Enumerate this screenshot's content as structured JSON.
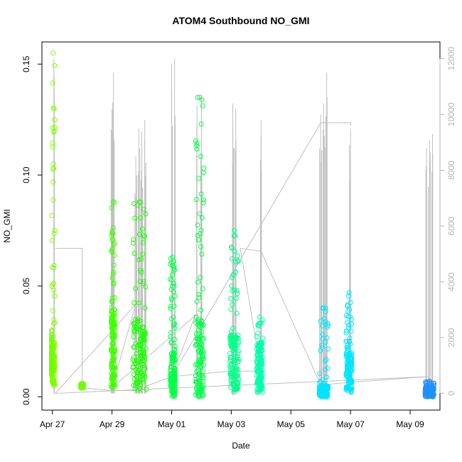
{
  "chart_data": {
    "type": "scatter",
    "title": "ATOM4 Southbound NO_GMI",
    "xlabel": "Date",
    "ylabel": "NO_GMI",
    "x_ticks": [
      "Apr 27",
      "Apr 29",
      "May 01",
      "May 03",
      "May 05",
      "May 07",
      "May 09"
    ],
    "x_tick_values": [
      0,
      2,
      4,
      6,
      8,
      10,
      12
    ],
    "xlim": [
      -0.35,
      13.0
    ],
    "ylim": [
      -0.006,
      0.16
    ],
    "y_ticks": [
      "0.00",
      "0.05",
      "0.10",
      "0.15"
    ],
    "y_tick_values": [
      0,
      0.05,
      0.1,
      0.15
    ],
    "y2lim": [
      -600,
      12600
    ],
    "y2_ticks": [
      "0",
      "2000",
      "4000",
      "6000",
      "8000",
      "10000",
      "12000"
    ],
    "y2_tick_values": [
      0,
      2000,
      4000,
      6000,
      8000,
      10000,
      12000
    ],
    "grid": false,
    "series": [
      {
        "role": "scatter",
        "colors": [
          "#7fff00",
          "#74ff00",
          "#40ff00",
          "#1aff00",
          "#00ff44",
          "#00ff88",
          "#00ffaa",
          "#00ffe8",
          "#00e5ff",
          "#1e90ff"
        ],
        "flights": [
          {
            "x0": -0.02,
            "x1": 0.08,
            "ymin": 0.005,
            "ymax": 0.155,
            "dense_max": 0.025,
            "color": "#7fff00"
          },
          {
            "x0": 0.95,
            "x1": 1.05,
            "ymin": 0.004,
            "ymax": 0.006,
            "dense_max": 0.006,
            "color": "#74ff00"
          },
          {
            "x0": -0.03,
            "x1": -0.02,
            "ymin": 0.01,
            "ymax": 0.03,
            "dense_max": 0.02,
            "color": "#74ff00"
          },
          {
            "x0": 1.97,
            "x1": 2.1,
            "ymin": 0.004,
            "ymax": 0.088,
            "dense_max": 0.04,
            "color": "#40ff00"
          },
          {
            "x0": 2.7,
            "x1": 3.15,
            "ymin": 0.003,
            "ymax": 0.088,
            "dense_max": 0.035,
            "color": "#1aff00"
          },
          {
            "x0": 3.95,
            "x1": 4.12,
            "ymin": 0.0,
            "ymax": 0.063,
            "dense_max": 0.02,
            "color": "#00ff44"
          },
          {
            "x0": 4.8,
            "x1": 5.08,
            "ymin": 0.0,
            "ymax": 0.135,
            "dense_max": 0.035,
            "color": "#00ff44"
          },
          {
            "x0": 5.95,
            "x1": 6.25,
            "ymin": 0.002,
            "ymax": 0.075,
            "dense_max": 0.028,
            "color": "#00ff88"
          },
          {
            "x0": 6.85,
            "x1": 7.05,
            "ymin": 0.002,
            "ymax": 0.036,
            "dense_max": 0.025,
            "color": "#00ffaa"
          },
          {
            "x0": 8.95,
            "x1": 9.25,
            "ymin": 0.0,
            "ymax": 0.04,
            "dense_max": 0.005,
            "color": "#00e5ff"
          },
          {
            "x0": 9.85,
            "x1": 10.05,
            "ymin": 0.002,
            "ymax": 0.047,
            "dense_max": 0.02,
            "color": "#00e5ff"
          },
          {
            "x0": 12.5,
            "x1": 12.8,
            "ymin": 0.0,
            "ymax": 0.007,
            "dense_max": 0.004,
            "color": "#1e90ff"
          }
        ]
      },
      {
        "role": "altitude_trace",
        "color": "#bfbfbf",
        "axis": "right",
        "spikes": [
          {
            "x": 0.05,
            "top": 12000
          },
          {
            "x": 2.0,
            "top": 10200
          },
          {
            "x": 2.05,
            "top": 11500
          },
          {
            "x": 2.8,
            "top": 8500
          },
          {
            "x": 2.9,
            "top": 9500
          },
          {
            "x": 3.0,
            "top": 9400
          },
          {
            "x": 3.1,
            "top": 9800
          },
          {
            "x": 4.0,
            "top": 11800
          },
          {
            "x": 4.1,
            "top": 12000
          },
          {
            "x": 4.85,
            "top": 10300
          },
          {
            "x": 5.0,
            "top": 10700
          },
          {
            "x": 6.05,
            "top": 10400
          },
          {
            "x": 6.15,
            "top": 10200
          },
          {
            "x": 7.0,
            "top": 9800
          },
          {
            "x": 9.0,
            "top": 10000
          },
          {
            "x": 9.1,
            "top": 10400
          },
          {
            "x": 9.2,
            "top": 11500
          },
          {
            "x": 10.0,
            "top": 9500
          },
          {
            "x": 12.55,
            "top": 8800
          },
          {
            "x": 12.65,
            "top": 9100
          },
          {
            "x": 12.75,
            "top": 9300
          }
        ],
        "path": [
          [
            0.1,
            5200
          ],
          [
            1.0,
            5200
          ],
          [
            1.0,
            200
          ],
          [
            2.0,
            100
          ],
          [
            2.9,
            100
          ],
          [
            3.0,
            200
          ],
          [
            4.0,
            600
          ],
          [
            5.0,
            700
          ],
          [
            6.0,
            800
          ],
          [
            7.0,
            800
          ],
          [
            6.3,
            5200
          ],
          [
            7.0,
            5100
          ],
          [
            9.0,
            300
          ],
          [
            10.0,
            400
          ],
          [
            12.6,
            600
          ],
          [
            0.1,
            0
          ],
          [
            2.8,
            3200
          ],
          [
            2.0,
            200
          ],
          [
            4.8,
            2800
          ],
          [
            4.0,
            600
          ],
          [
            9.0,
            9700
          ],
          [
            10.0,
            9700
          ],
          [
            10.0,
            9600
          ]
        ]
      }
    ]
  }
}
